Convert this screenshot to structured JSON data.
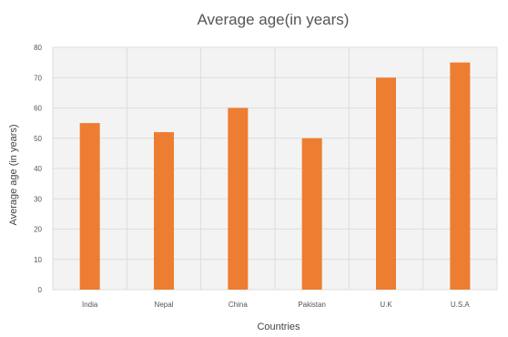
{
  "chart_data": {
    "type": "bar",
    "title": "Average age(in years)",
    "xlabel": "Countries",
    "ylabel": "Average age (in years)",
    "categories": [
      "India",
      "Nepal",
      "China",
      "Pakistan",
      "U.K",
      "U.S.A"
    ],
    "values": [
      55,
      52,
      60,
      50,
      70,
      75
    ],
    "ylim": [
      0,
      80
    ],
    "yticks": [
      0,
      10,
      20,
      30,
      40,
      50,
      60,
      70,
      80
    ],
    "grid": true,
    "legend": "none",
    "bar_color": "#ED7D31",
    "plot_background": "#f3f3f3"
  }
}
